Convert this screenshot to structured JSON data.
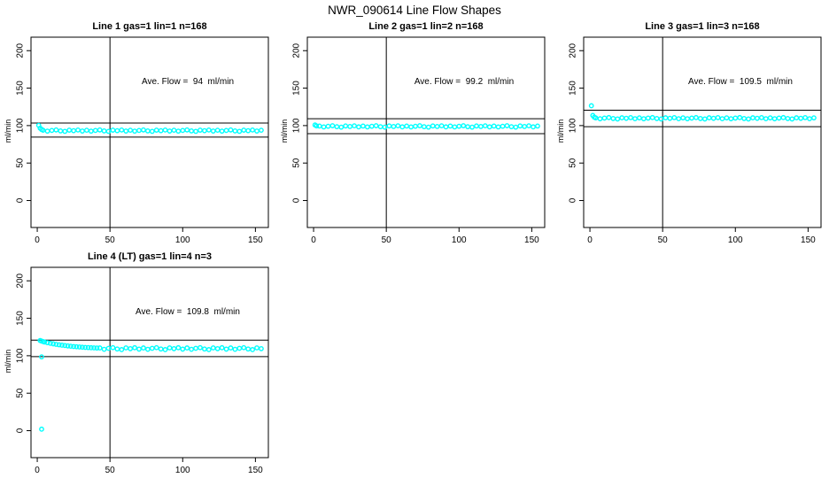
{
  "main_title": "NWR_090614  Line Flow Shapes",
  "colors": {
    "background": "#FFFFFF",
    "points": "#00FFFF",
    "lines": "#000000",
    "text": "#000000"
  },
  "chart_data": [
    {
      "type": "scatter",
      "title": "Line 1 gas=1 lin=1 n=168",
      "annotation": "Ave. Flow =  94  ml/min",
      "ylabel": "ml/min",
      "avg_flow_ml_min": 94,
      "n": 168,
      "x_ticks": [
        0,
        50,
        100,
        150
      ],
      "y_ticks": [
        0,
        50,
        100,
        150,
        200
      ],
      "xlim": [
        -4.3,
        158.9
      ],
      "ylim": [
        -36,
        218
      ],
      "vline_x": 50,
      "hlines": [
        103.4,
        84.6
      ],
      "grid": false,
      "point_color": "#00FFFF",
      "points": [
        [
          1,
          100.3
        ],
        [
          2,
          96.5
        ],
        [
          3,
          94.8
        ],
        [
          4,
          93.8
        ],
        [
          7,
          92.6
        ],
        [
          10,
          93.5
        ],
        [
          13,
          94.2
        ],
        [
          16,
          92.9
        ],
        [
          19,
          92.3
        ],
        [
          22,
          93.9
        ],
        [
          25,
          93.2
        ],
        [
          28,
          94.1
        ],
        [
          31,
          92.7
        ],
        [
          34,
          93.8
        ],
        [
          37,
          92.6
        ],
        [
          40,
          93.5
        ],
        [
          43,
          94.2
        ],
        [
          46,
          92.9
        ],
        [
          49,
          92.3
        ],
        [
          52,
          93.9
        ],
        [
          55,
          93.2
        ],
        [
          58,
          94.1
        ],
        [
          61,
          92.7
        ],
        [
          64,
          93.8
        ],
        [
          67,
          92.6
        ],
        [
          70,
          93.5
        ],
        [
          73,
          94.2
        ],
        [
          76,
          92.9
        ],
        [
          79,
          92.3
        ],
        [
          82,
          93.9
        ],
        [
          85,
          93.2
        ],
        [
          88,
          94.1
        ],
        [
          91,
          92.7
        ],
        [
          94,
          93.8
        ],
        [
          97,
          92.6
        ],
        [
          100,
          93.5
        ],
        [
          103,
          94.2
        ],
        [
          106,
          92.9
        ],
        [
          109,
          92.3
        ],
        [
          112,
          93.9
        ],
        [
          115,
          93.2
        ],
        [
          118,
          94.1
        ],
        [
          121,
          92.7
        ],
        [
          124,
          93.8
        ],
        [
          127,
          92.6
        ],
        [
          130,
          93.5
        ],
        [
          133,
          94.2
        ],
        [
          136,
          92.9
        ],
        [
          139,
          92.3
        ],
        [
          142,
          93.9
        ],
        [
          145,
          93.2
        ],
        [
          148,
          94.1
        ],
        [
          151,
          92.7
        ],
        [
          154,
          93.8
        ]
      ]
    },
    {
      "type": "scatter",
      "title": "Line 2 gas=1 lin=2 n=168",
      "annotation": "Ave. Flow =  99.2  ml/min",
      "ylabel": "ml/min",
      "avg_flow_ml_min": 99.2,
      "n": 168,
      "x_ticks": [
        0,
        50,
        100,
        150
      ],
      "y_ticks": [
        0,
        50,
        100,
        150,
        200
      ],
      "xlim": [
        -4.3,
        158.9
      ],
      "ylim": [
        -36,
        218
      ],
      "vline_x": 50,
      "hlines": [
        109.1,
        89.3
      ],
      "grid": false,
      "point_color": "#00FFFF",
      "points": [
        [
          1,
          100.8
        ],
        [
          2,
          99.6
        ],
        [
          4,
          99.4
        ],
        [
          7,
          98.2
        ],
        [
          10,
          99.1
        ],
        [
          13,
          99.8
        ],
        [
          16,
          98.5
        ],
        [
          19,
          97.9
        ],
        [
          22,
          99.5
        ],
        [
          25,
          98.8
        ],
        [
          28,
          99.7
        ],
        [
          31,
          98.3
        ],
        [
          34,
          99.4
        ],
        [
          37,
          98.2
        ],
        [
          40,
          99.1
        ],
        [
          43,
          99.8
        ],
        [
          46,
          98.5
        ],
        [
          49,
          97.9
        ],
        [
          52,
          99.5
        ],
        [
          55,
          98.8
        ],
        [
          58,
          99.7
        ],
        [
          61,
          98.3
        ],
        [
          64,
          99.4
        ],
        [
          67,
          98.2
        ],
        [
          70,
          99.1
        ],
        [
          73,
          99.8
        ],
        [
          76,
          98.5
        ],
        [
          79,
          97.9
        ],
        [
          82,
          99.5
        ],
        [
          85,
          98.8
        ],
        [
          88,
          99.7
        ],
        [
          91,
          98.3
        ],
        [
          94,
          99.4
        ],
        [
          97,
          98.2
        ],
        [
          100,
          99.1
        ],
        [
          103,
          99.8
        ],
        [
          106,
          98.5
        ],
        [
          109,
          97.9
        ],
        [
          112,
          99.5
        ],
        [
          115,
          98.8
        ],
        [
          118,
          99.7
        ],
        [
          121,
          98.3
        ],
        [
          124,
          99.4
        ],
        [
          127,
          98.2
        ],
        [
          130,
          99.1
        ],
        [
          133,
          99.8
        ],
        [
          136,
          98.5
        ],
        [
          139,
          97.9
        ],
        [
          142,
          99.5
        ],
        [
          145,
          98.8
        ],
        [
          148,
          99.7
        ],
        [
          151,
          98.3
        ],
        [
          154,
          99.4
        ]
      ]
    },
    {
      "type": "scatter",
      "title": "Line 3 gas=1 lin=3 n=168",
      "annotation": "Ave. Flow =  109.5  ml/min",
      "ylabel": "ml/min",
      "avg_flow_ml_min": 109.5,
      "n": 168,
      "x_ticks": [
        0,
        50,
        100,
        150
      ],
      "y_ticks": [
        0,
        50,
        100,
        150,
        200
      ],
      "xlim": [
        -4.3,
        158.9
      ],
      "ylim": [
        -36,
        218
      ],
      "vline_x": 50,
      "hlines": [
        120.5,
        98.6
      ],
      "grid": false,
      "point_color": "#00FFFF",
      "points": [
        [
          1,
          126.5
        ],
        [
          2,
          113.5
        ],
        [
          3,
          111.2
        ],
        [
          4,
          110.3
        ],
        [
          7,
          109.1
        ],
        [
          10,
          110.0
        ],
        [
          13,
          110.7
        ],
        [
          16,
          109.4
        ],
        [
          19,
          108.8
        ],
        [
          22,
          110.4
        ],
        [
          25,
          109.7
        ],
        [
          28,
          110.6
        ],
        [
          31,
          109.2
        ],
        [
          34,
          110.3
        ],
        [
          37,
          109.1
        ],
        [
          40,
          110.0
        ],
        [
          43,
          110.7
        ],
        [
          46,
          109.4
        ],
        [
          49,
          108.8
        ],
        [
          52,
          110.4
        ],
        [
          55,
          109.7
        ],
        [
          58,
          110.6
        ],
        [
          61,
          109.2
        ],
        [
          64,
          110.3
        ],
        [
          67,
          109.1
        ],
        [
          70,
          110.0
        ],
        [
          73,
          110.7
        ],
        [
          76,
          109.4
        ],
        [
          79,
          108.8
        ],
        [
          82,
          110.4
        ],
        [
          85,
          109.7
        ],
        [
          88,
          110.6
        ],
        [
          91,
          109.2
        ],
        [
          94,
          110.3
        ],
        [
          97,
          109.1
        ],
        [
          100,
          110.0
        ],
        [
          103,
          110.7
        ],
        [
          106,
          109.4
        ],
        [
          109,
          108.8
        ],
        [
          112,
          110.4
        ],
        [
          115,
          109.7
        ],
        [
          118,
          110.6
        ],
        [
          121,
          109.2
        ],
        [
          124,
          110.3
        ],
        [
          127,
          109.1
        ],
        [
          130,
          110.0
        ],
        [
          133,
          110.7
        ],
        [
          136,
          109.4
        ],
        [
          139,
          108.8
        ],
        [
          142,
          110.4
        ],
        [
          145,
          109.7
        ],
        [
          148,
          110.6
        ],
        [
          151,
          109.2
        ],
        [
          154,
          110.3
        ]
      ]
    },
    {
      "type": "scatter",
      "title": "Line 4 (LT) gas=1 lin=4 n=3",
      "annotation": "Ave. Flow =  109.8  ml/min",
      "ylabel": "ml/min",
      "avg_flow_ml_min": 109.8,
      "n": 3,
      "x_ticks": [
        0,
        50,
        100,
        150
      ],
      "y_ticks": [
        0,
        50,
        100,
        150,
        200
      ],
      "xlim": [
        -4.3,
        158.9
      ],
      "ylim": [
        -36,
        218
      ],
      "vline_x": 50,
      "hlines": [
        120.8,
        98.8
      ],
      "grid": false,
      "point_color": "#00FFFF",
      "points": [
        [
          3,
          98.5
        ],
        [
          3,
          2
        ],
        [
          2,
          120.3
        ],
        [
          3,
          119.6
        ],
        [
          4,
          118.9
        ],
        [
          5,
          118.3
        ],
        [
          7,
          117.4
        ],
        [
          9,
          116.6
        ],
        [
          11,
          115.9
        ],
        [
          13,
          115.2
        ],
        [
          15,
          114.6
        ],
        [
          17,
          114.1
        ],
        [
          19,
          113.6
        ],
        [
          21,
          113.1
        ],
        [
          23,
          112.7
        ],
        [
          25,
          112.3
        ],
        [
          27,
          112.0
        ],
        [
          29,
          111.7
        ],
        [
          31,
          111.4
        ],
        [
          33,
          111.1
        ],
        [
          35,
          110.9
        ],
        [
          37,
          110.7
        ],
        [
          39,
          110.5
        ],
        [
          41,
          110.3
        ],
        [
          43,
          110.4
        ],
        [
          46,
          108.6
        ],
        [
          49,
          109.9
        ],
        [
          52,
          110.8
        ],
        [
          55,
          109.0
        ],
        [
          58,
          108.2
        ],
        [
          61,
          110.5
        ],
        [
          64,
          109.4
        ],
        [
          67,
          110.7
        ],
        [
          70,
          108.8
        ],
        [
          73,
          110.4
        ],
        [
          76,
          108.6
        ],
        [
          79,
          109.9
        ],
        [
          82,
          110.8
        ],
        [
          85,
          109.0
        ],
        [
          88,
          108.2
        ],
        [
          91,
          110.5
        ],
        [
          94,
          109.4
        ],
        [
          97,
          110.7
        ],
        [
          100,
          108.8
        ],
        [
          103,
          110.4
        ],
        [
          106,
          108.6
        ],
        [
          109,
          109.9
        ],
        [
          112,
          110.8
        ],
        [
          115,
          109.0
        ],
        [
          118,
          108.2
        ],
        [
          121,
          110.5
        ],
        [
          124,
          109.4
        ],
        [
          127,
          110.7
        ],
        [
          130,
          108.8
        ],
        [
          133,
          110.4
        ],
        [
          136,
          108.6
        ],
        [
          139,
          109.9
        ],
        [
          142,
          110.8
        ],
        [
          145,
          109.0
        ],
        [
          148,
          108.2
        ],
        [
          151,
          110.5
        ],
        [
          154,
          109.4
        ]
      ]
    }
  ]
}
